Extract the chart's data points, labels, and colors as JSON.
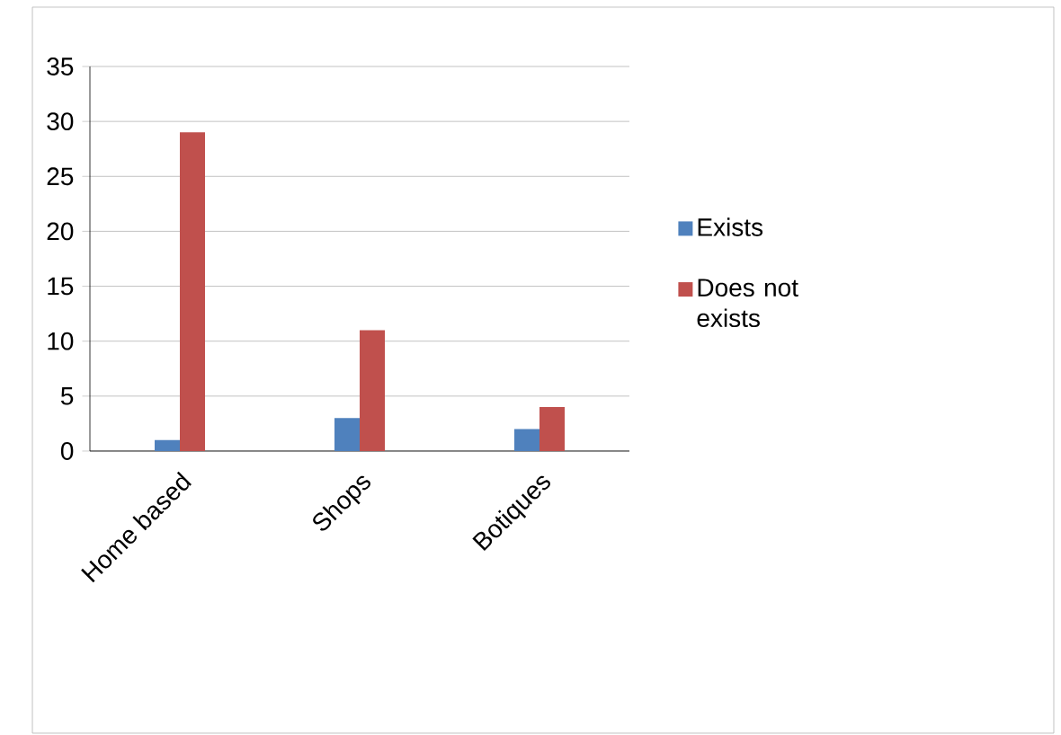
{
  "chart_data": {
    "type": "bar",
    "categories": [
      "Home based",
      "Shops",
      "Botiques"
    ],
    "series": [
      {
        "name": "Exists",
        "color": "#4f81bd",
        "values": [
          1,
          3,
          2
        ]
      },
      {
        "name": "Does not exists",
        "color": "#c0504d",
        "values": [
          29,
          11,
          4
        ]
      }
    ],
    "ylim": [
      0,
      35
    ],
    "yticks": [
      0,
      5,
      10,
      15,
      20,
      25,
      30,
      35
    ],
    "grid": "y",
    "legend": "right"
  }
}
